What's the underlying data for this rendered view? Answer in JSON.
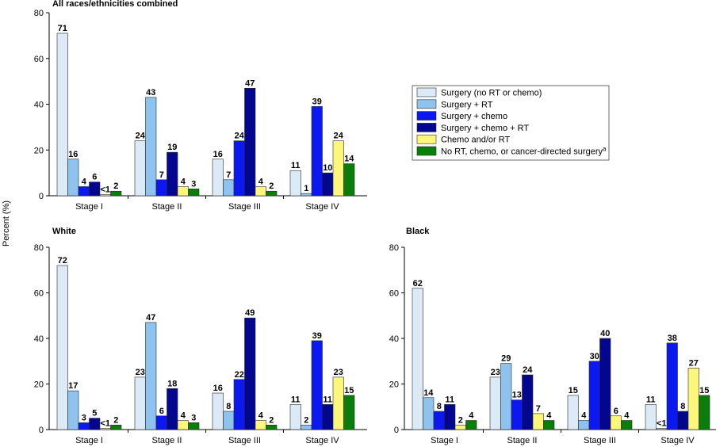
{
  "ylabel": "Percent (%)",
  "series_styles": [
    {
      "color": "#dce9f7"
    },
    {
      "color": "#8ec3ee"
    },
    {
      "color": "#0b18f0"
    },
    {
      "color": "#03068f"
    },
    {
      "color": "#fdf67d"
    },
    {
      "color": "#0a7d0a"
    }
  ],
  "legend": [
    {
      "label": "Surgery (no RT or chemo)",
      "sup": ""
    },
    {
      "label": "Surgery + RT",
      "sup": ""
    },
    {
      "label": "Surgery + chemo",
      "sup": ""
    },
    {
      "label": "Surgery + chemo + RT",
      "sup": ""
    },
    {
      "label": "Chemo and/or RT",
      "sup": ""
    },
    {
      "label": "No RT, chemo, or cancer-directed surgery",
      "sup": "a"
    }
  ],
  "chart_data": [
    {
      "type": "bar",
      "title": "All races/ethnicities combined",
      "ylim": [
        0,
        80
      ],
      "yticks": [
        0,
        20,
        40,
        60,
        80
      ],
      "categories": [
        "Stage I",
        "Stage II",
        "Stage III",
        "Stage IV"
      ],
      "series": [
        {
          "name": "Surgery (no RT or chemo)",
          "values": [
            71,
            24,
            16,
            11
          ],
          "labels": [
            "71",
            "24",
            "16",
            "11"
          ]
        },
        {
          "name": "Surgery + RT",
          "values": [
            16,
            43,
            7,
            1
          ],
          "labels": [
            "16",
            "43",
            "7",
            "1"
          ]
        },
        {
          "name": "Surgery + chemo",
          "values": [
            4,
            7,
            24,
            39
          ],
          "labels": [
            "4",
            "7",
            "24",
            "39"
          ]
        },
        {
          "name": "Surgery + chemo + RT",
          "values": [
            6,
            19,
            47,
            10
          ],
          "labels": [
            "6",
            "19",
            "47",
            "10"
          ]
        },
        {
          "name": "Chemo and/or RT",
          "values": [
            0.5,
            4,
            4,
            24
          ],
          "labels": [
            "<1",
            "4",
            "4",
            "24"
          ]
        },
        {
          "name": "No RT, chemo, or cancer-directed surgery",
          "values": [
            2,
            3,
            2,
            14
          ],
          "labels": [
            "2",
            "3",
            "2",
            "14"
          ]
        }
      ]
    },
    {
      "type": "bar",
      "title": "White",
      "ylim": [
        0,
        80
      ],
      "yticks": [
        0,
        20,
        40,
        60,
        80
      ],
      "categories": [
        "Stage I",
        "Stage II",
        "Stage III",
        "Stage IV"
      ],
      "series": [
        {
          "name": "Surgery (no RT or chemo)",
          "values": [
            72,
            23,
            16,
            11
          ],
          "labels": [
            "72",
            "23",
            "16",
            "11"
          ]
        },
        {
          "name": "Surgery + RT",
          "values": [
            17,
            47,
            8,
            2
          ],
          "labels": [
            "17",
            "47",
            "8",
            "2"
          ]
        },
        {
          "name": "Surgery + chemo",
          "values": [
            3,
            6,
            22,
            39
          ],
          "labels": [
            "3",
            "6",
            "22",
            "39"
          ]
        },
        {
          "name": "Surgery + chemo + RT",
          "values": [
            5,
            18,
            49,
            11
          ],
          "labels": [
            "5",
            "18",
            "49",
            "11"
          ]
        },
        {
          "name": "Chemo and/or RT",
          "values": [
            0.5,
            4,
            4,
            23
          ],
          "labels": [
            "<1",
            "4",
            "4",
            "23"
          ]
        },
        {
          "name": "No RT, chemo, or cancer-directed surgery",
          "values": [
            2,
            3,
            2,
            15
          ],
          "labels": [
            "2",
            "3",
            "2",
            "15"
          ]
        }
      ]
    },
    {
      "type": "bar",
      "title": "Black",
      "ylim": [
        0,
        80
      ],
      "yticks": [
        0,
        20,
        40,
        60,
        80
      ],
      "categories": [
        "Stage I",
        "Stage II",
        "Stage III",
        "Stage IV"
      ],
      "series": [
        {
          "name": "Surgery (no RT or chemo)",
          "values": [
            62,
            23,
            15,
            11
          ],
          "labels": [
            "62",
            "23",
            "15",
            "11"
          ]
        },
        {
          "name": "Surgery + RT",
          "values": [
            14,
            29,
            4,
            0.5
          ],
          "labels": [
            "14",
            "29",
            "4",
            "<1"
          ]
        },
        {
          "name": "Surgery + chemo",
          "values": [
            8,
            13,
            30,
            38
          ],
          "labels": [
            "8",
            "13",
            "30",
            "38"
          ]
        },
        {
          "name": "Surgery + chemo + RT",
          "values": [
            11,
            24,
            40,
            8
          ],
          "labels": [
            "11",
            "24",
            "40",
            "8"
          ]
        },
        {
          "name": "Chemo and/or RT",
          "values": [
            2,
            7,
            6,
            27
          ],
          "labels": [
            "2",
            "7",
            "6",
            "27"
          ]
        },
        {
          "name": "No RT, chemo, or cancer-directed surgery",
          "values": [
            4,
            4,
            4,
            15
          ],
          "labels": [
            "4",
            "4",
            "4",
            "15"
          ]
        }
      ]
    }
  ]
}
